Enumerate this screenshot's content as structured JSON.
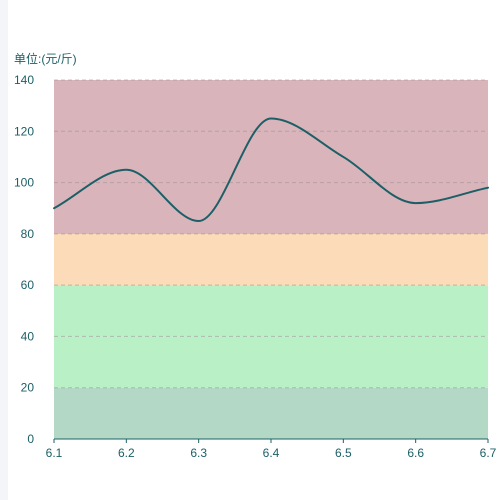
{
  "chart_data": {
    "type": "line",
    "unit_label": "单位:(元/斤)",
    "x": [
      "6.1",
      "6.2",
      "6.3",
      "6.4",
      "6.5",
      "6.6",
      "6.7"
    ],
    "series": [
      {
        "values": [
          90,
          105,
          85,
          125,
          110,
          92,
          98
        ]
      }
    ],
    "ylim": [
      0,
      140
    ],
    "yticks": [
      "0",
      "20",
      "40",
      "60",
      "80",
      "100",
      "120",
      "140"
    ],
    "bands": [
      {
        "from": 0,
        "to": 20,
        "color": "#b3d8c6"
      },
      {
        "from": 20,
        "to": 40,
        "color": "#baf0c6"
      },
      {
        "from": 40,
        "to": 60,
        "color": "#baf0c6"
      },
      {
        "from": 60,
        "to": 80,
        "color": "#fbdbb8"
      },
      {
        "from": 80,
        "to": 140,
        "color": "#f5bbbe"
      },
      {
        "from": 80,
        "to": 140,
        "color": "#d9b4ba"
      }
    ],
    "line_color": "#1c5f66",
    "text_color": "#1c5f66",
    "grid": true
  }
}
